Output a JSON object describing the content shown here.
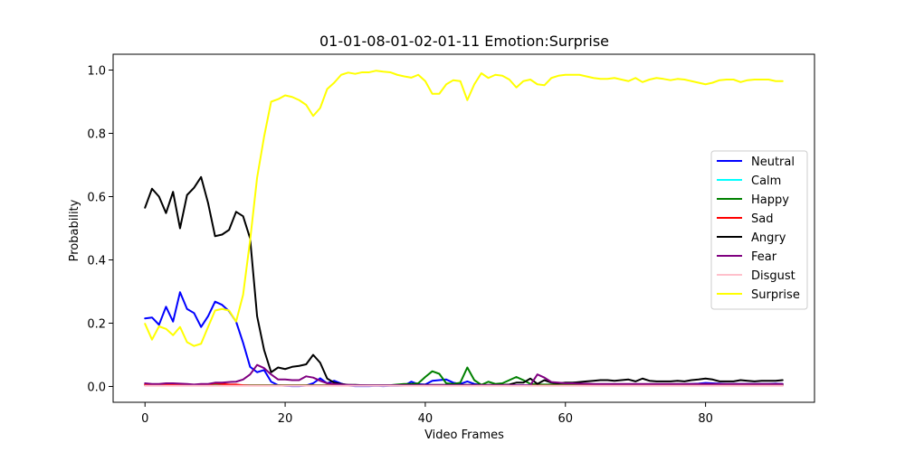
{
  "chart_data": {
    "type": "line",
    "title": "01-01-08-01-02-01-11 Emotion:Surprise",
    "xlabel": "Video Frames",
    "ylabel": "Probability",
    "xlim": [
      -4.55,
      95.55
    ],
    "ylim": [
      -0.05,
      1.05
    ],
    "x_ticks": [
      0,
      20,
      40,
      60,
      80
    ],
    "y_ticks": [
      0.0,
      0.2,
      0.4,
      0.6,
      0.8,
      1.0
    ],
    "x_tick_labels": [
      "0",
      "20",
      "40",
      "60",
      "80"
    ],
    "y_tick_labels": [
      "0.0",
      "0.2",
      "0.4",
      "0.6",
      "0.8",
      "1.0"
    ],
    "grid": false,
    "legend_position": "center-right",
    "x": [
      0,
      1,
      2,
      3,
      4,
      5,
      6,
      7,
      8,
      9,
      10,
      11,
      12,
      13,
      14,
      15,
      16,
      17,
      18,
      19,
      20,
      21,
      22,
      23,
      24,
      25,
      26,
      27,
      28,
      29,
      30,
      31,
      32,
      33,
      34,
      35,
      36,
      37,
      38,
      39,
      40,
      41,
      42,
      43,
      44,
      45,
      46,
      47,
      48,
      49,
      50,
      51,
      52,
      53,
      54,
      55,
      56,
      57,
      58,
      59,
      60,
      61,
      62,
      63,
      64,
      65,
      66,
      67,
      68,
      69,
      70,
      71,
      72,
      73,
      74,
      75,
      76,
      77,
      78,
      79,
      80,
      81,
      82,
      83,
      84,
      85,
      86,
      87,
      88,
      89,
      90,
      91
    ],
    "series": [
      {
        "name": "Neutral",
        "color": "#0000ff",
        "values": [
          0.215,
          0.218,
          0.195,
          0.252,
          0.205,
          0.298,
          0.245,
          0.232,
          0.188,
          0.222,
          0.268,
          0.258,
          0.238,
          0.205,
          0.138,
          0.062,
          0.045,
          0.052,
          0.015,
          0.004,
          0.002,
          0.001,
          0.001,
          0.003,
          0.01,
          0.026,
          0.01,
          0.018,
          0.009,
          0.003,
          0.001,
          0.001,
          0.001,
          0.002,
          0.001,
          0.002,
          0.002,
          0.003,
          0.015,
          0.007,
          0.006,
          0.018,
          0.02,
          0.022,
          0.012,
          0.008,
          0.016,
          0.008,
          0.004,
          0.004,
          0.004,
          0.004,
          0.004,
          0.004,
          0.004,
          0.004,
          0.004,
          0.004,
          0.004,
          0.004,
          0.005,
          0.005,
          0.005,
          0.005,
          0.005,
          0.005,
          0.005,
          0.005,
          0.005,
          0.005,
          0.005,
          0.005,
          0.005,
          0.005,
          0.006,
          0.006,
          0.006,
          0.007,
          0.008,
          0.009,
          0.011,
          0.01,
          0.009,
          0.008,
          0.008,
          0.008,
          0.008,
          0.008,
          0.008,
          0.008,
          0.009,
          0.008
        ]
      },
      {
        "name": "Calm",
        "color": "#00ffff",
        "values": [
          0.003,
          0.003,
          0.003,
          0.003,
          0.003,
          0.003,
          0.003,
          0.003,
          0.003,
          0.003,
          0.003,
          0.003,
          0.003,
          0.003,
          0.003,
          0.003,
          0.003,
          0.003,
          0.003,
          0.003,
          0.003,
          0.003,
          0.003,
          0.003,
          0.003,
          0.003,
          0.003,
          0.003,
          0.003,
          0.003,
          0.003,
          0.003,
          0.003,
          0.003,
          0.003,
          0.003,
          0.003,
          0.003,
          0.003,
          0.003,
          0.003,
          0.003,
          0.003,
          0.003,
          0.003,
          0.003,
          0.003,
          0.003,
          0.003,
          0.003,
          0.003,
          0.003,
          0.003,
          0.003,
          0.003,
          0.003,
          0.003,
          0.003,
          0.003,
          0.003,
          0.003,
          0.003,
          0.003,
          0.003,
          0.003,
          0.003,
          0.003,
          0.003,
          0.003,
          0.003,
          0.003,
          0.003,
          0.003,
          0.003,
          0.003,
          0.003,
          0.003,
          0.003,
          0.003,
          0.003,
          0.003,
          0.003,
          0.003,
          0.003,
          0.003,
          0.003,
          0.003,
          0.003,
          0.003,
          0.003,
          0.003,
          0.003
        ]
      },
      {
        "name": "Happy",
        "color": "#008000",
        "values": [
          0.004,
          0.004,
          0.004,
          0.004,
          0.004,
          0.004,
          0.004,
          0.004,
          0.004,
          0.004,
          0.004,
          0.004,
          0.004,
          0.004,
          0.004,
          0.004,
          0.004,
          0.004,
          0.004,
          0.004,
          0.004,
          0.004,
          0.004,
          0.004,
          0.004,
          0.004,
          0.004,
          0.004,
          0.004,
          0.004,
          0.004,
          0.004,
          0.004,
          0.004,
          0.004,
          0.004,
          0.006,
          0.008,
          0.008,
          0.01,
          0.03,
          0.048,
          0.04,
          0.01,
          0.008,
          0.012,
          0.06,
          0.02,
          0.005,
          0.015,
          0.008,
          0.01,
          0.02,
          0.03,
          0.02,
          0.008,
          0.006,
          0.006,
          0.006,
          0.006,
          0.006,
          0.006,
          0.006,
          0.006,
          0.006,
          0.006,
          0.006,
          0.006,
          0.006,
          0.006,
          0.006,
          0.006,
          0.006,
          0.006,
          0.006,
          0.006,
          0.006,
          0.006,
          0.006,
          0.006,
          0.006,
          0.006,
          0.006,
          0.006,
          0.006,
          0.006,
          0.006,
          0.006,
          0.006,
          0.006,
          0.006,
          0.006
        ]
      },
      {
        "name": "Sad",
        "color": "#ff0000",
        "values": [
          0.006,
          0.006,
          0.006,
          0.007,
          0.007,
          0.006,
          0.005,
          0.005,
          0.006,
          0.006,
          0.01,
          0.008,
          0.006,
          0.006,
          0.004,
          0.003,
          0.003,
          0.003,
          0.003,
          0.003,
          0.003,
          0.003,
          0.003,
          0.003,
          0.003,
          0.003,
          0.003,
          0.003,
          0.003,
          0.003,
          0.003,
          0.003,
          0.003,
          0.003,
          0.003,
          0.003,
          0.003,
          0.003,
          0.003,
          0.003,
          0.003,
          0.003,
          0.003,
          0.003,
          0.003,
          0.003,
          0.003,
          0.003,
          0.003,
          0.003,
          0.003,
          0.003,
          0.003,
          0.003,
          0.003,
          0.003,
          0.003,
          0.003,
          0.003,
          0.003,
          0.003,
          0.003,
          0.003,
          0.003,
          0.003,
          0.003,
          0.003,
          0.003,
          0.003,
          0.003,
          0.003,
          0.003,
          0.003,
          0.003,
          0.003,
          0.003,
          0.003,
          0.003,
          0.003,
          0.003,
          0.003,
          0.003,
          0.003,
          0.003,
          0.003,
          0.003,
          0.003,
          0.003,
          0.003,
          0.003,
          0.003,
          0.003
        ]
      },
      {
        "name": "Angry",
        "color": "#000000",
        "values": [
          0.565,
          0.625,
          0.6,
          0.548,
          0.615,
          0.5,
          0.605,
          0.628,
          0.662,
          0.58,
          0.475,
          0.48,
          0.495,
          0.552,
          0.538,
          0.468,
          0.222,
          0.115,
          0.045,
          0.06,
          0.055,
          0.062,
          0.065,
          0.07,
          0.1,
          0.075,
          0.025,
          0.012,
          0.008,
          0.005,
          0.005,
          0.004,
          0.003,
          0.003,
          0.003,
          0.003,
          0.004,
          0.005,
          0.005,
          0.005,
          0.005,
          0.005,
          0.005,
          0.005,
          0.005,
          0.005,
          0.005,
          0.005,
          0.005,
          0.005,
          0.005,
          0.005,
          0.006,
          0.012,
          0.012,
          0.025,
          0.008,
          0.02,
          0.012,
          0.01,
          0.012,
          0.012,
          0.014,
          0.016,
          0.018,
          0.02,
          0.02,
          0.018,
          0.02,
          0.022,
          0.016,
          0.025,
          0.018,
          0.016,
          0.016,
          0.016,
          0.018,
          0.016,
          0.02,
          0.022,
          0.025,
          0.022,
          0.016,
          0.016,
          0.016,
          0.02,
          0.018,
          0.016,
          0.018,
          0.018,
          0.018,
          0.02
        ]
      },
      {
        "name": "Fear",
        "color": "#800080",
        "values": [
          0.01,
          0.008,
          0.008,
          0.01,
          0.01,
          0.009,
          0.008,
          0.006,
          0.008,
          0.008,
          0.012,
          0.012,
          0.014,
          0.015,
          0.022,
          0.038,
          0.068,
          0.058,
          0.038,
          0.022,
          0.022,
          0.02,
          0.02,
          0.032,
          0.028,
          0.018,
          0.01,
          0.008,
          0.006,
          0.005,
          0.004,
          0.004,
          0.004,
          0.004,
          0.004,
          0.004,
          0.004,
          0.004,
          0.004,
          0.004,
          0.004,
          0.004,
          0.004,
          0.004,
          0.004,
          0.004,
          0.004,
          0.004,
          0.004,
          0.004,
          0.004,
          0.004,
          0.004,
          0.004,
          0.004,
          0.004,
          0.038,
          0.028,
          0.014,
          0.012,
          0.01,
          0.01,
          0.009,
          0.009,
          0.008,
          0.008,
          0.008,
          0.008,
          0.008,
          0.008,
          0.008,
          0.008,
          0.008,
          0.008,
          0.008,
          0.008,
          0.008,
          0.008,
          0.008,
          0.008,
          0.008,
          0.008,
          0.008,
          0.008,
          0.008,
          0.008,
          0.008,
          0.008,
          0.008,
          0.008,
          0.008,
          0.008
        ]
      },
      {
        "name": "Disgust",
        "color": "#ffc0cb",
        "values": [
          0.002,
          0.002,
          0.002,
          0.002,
          0.002,
          0.002,
          0.002,
          0.002,
          0.002,
          0.002,
          0.002,
          0.002,
          0.002,
          0.002,
          0.002,
          0.002,
          0.002,
          0.002,
          0.002,
          0.002,
          0.002,
          0.002,
          0.002,
          0.002,
          0.002,
          0.002,
          0.002,
          0.002,
          0.002,
          0.002,
          0.002,
          0.002,
          0.002,
          0.002,
          0.002,
          0.002,
          0.002,
          0.002,
          0.002,
          0.002,
          0.002,
          0.002,
          0.002,
          0.002,
          0.002,
          0.002,
          0.002,
          0.002,
          0.002,
          0.002,
          0.002,
          0.002,
          0.002,
          0.002,
          0.002,
          0.002,
          0.002,
          0.002,
          0.002,
          0.002,
          0.002,
          0.002,
          0.002,
          0.002,
          0.002,
          0.002,
          0.002,
          0.002,
          0.002,
          0.002,
          0.002,
          0.002,
          0.002,
          0.002,
          0.002,
          0.002,
          0.002,
          0.002,
          0.002,
          0.002,
          0.002,
          0.002,
          0.002,
          0.002,
          0.002,
          0.002,
          0.002,
          0.002,
          0.002,
          0.002,
          0.002,
          0.002
        ]
      },
      {
        "name": "Surprise",
        "color": "#ffff00",
        "values": [
          0.198,
          0.148,
          0.19,
          0.182,
          0.162,
          0.188,
          0.14,
          0.128,
          0.135,
          0.188,
          0.24,
          0.245,
          0.24,
          0.205,
          0.29,
          0.462,
          0.66,
          0.79,
          0.9,
          0.908,
          0.92,
          0.915,
          0.905,
          0.89,
          0.855,
          0.88,
          0.94,
          0.96,
          0.985,
          0.992,
          0.988,
          0.993,
          0.993,
          0.998,
          0.995,
          0.993,
          0.985,
          0.98,
          0.976,
          0.985,
          0.965,
          0.925,
          0.925,
          0.955,
          0.968,
          0.965,
          0.905,
          0.955,
          0.99,
          0.975,
          0.985,
          0.982,
          0.97,
          0.945,
          0.965,
          0.97,
          0.955,
          0.952,
          0.975,
          0.982,
          0.985,
          0.985,
          0.985,
          0.98,
          0.975,
          0.972,
          0.972,
          0.975,
          0.97,
          0.965,
          0.975,
          0.962,
          0.97,
          0.975,
          0.972,
          0.968,
          0.972,
          0.97,
          0.965,
          0.96,
          0.955,
          0.96,
          0.968,
          0.97,
          0.97,
          0.962,
          0.968,
          0.97,
          0.97,
          0.97,
          0.965,
          0.965
        ]
      }
    ]
  }
}
